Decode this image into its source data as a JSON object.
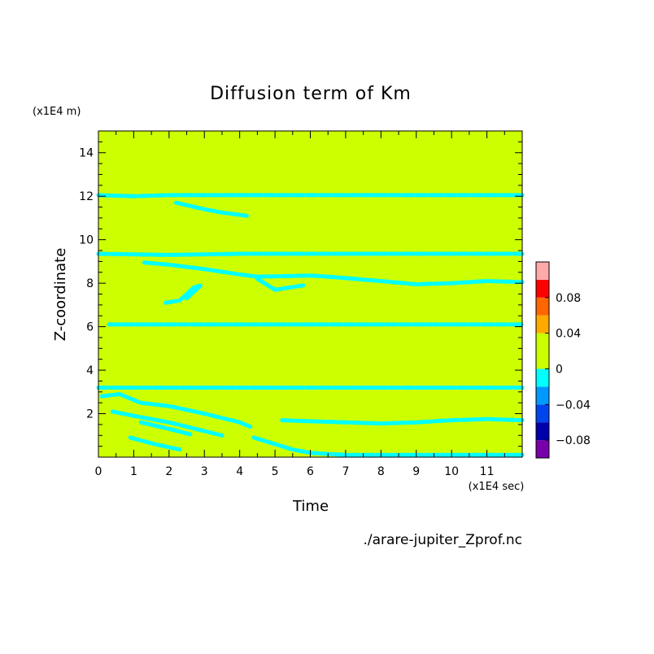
{
  "chart_data": {
    "type": "heatmap",
    "title": "Diffusion term of Km",
    "xlabel": "Time",
    "ylabel": "Z-coordinate",
    "x_unit": "(x1E4 sec)",
    "y_unit": "(x1E4 m)",
    "source": "./arare-jupiter_Zprof.nc",
    "xlim": [
      0,
      12
    ],
    "ylim": [
      0,
      15
    ],
    "x_ticks": [
      0,
      1,
      2,
      3,
      4,
      5,
      6,
      7,
      8,
      9,
      10,
      11
    ],
    "y_ticks": [
      2,
      4,
      6,
      8,
      10,
      12,
      14
    ],
    "background_color": "#ccff00",
    "band_color": "#00ffff",
    "colorbar": {
      "ticks": [
        {
          "value": 0.08,
          "label": "0.08"
        },
        {
          "value": 0.04,
          "label": "0.04"
        },
        {
          "value": 0,
          "label": "0"
        },
        {
          "value": -0.04,
          "label": "−0.04"
        },
        {
          "value": -0.08,
          "label": "−0.08"
        }
      ],
      "levels": [
        {
          "from": -0.1,
          "to": -0.08,
          "color": "#7700aa"
        },
        {
          "from": -0.08,
          "to": -0.06,
          "color": "#0000aa"
        },
        {
          "from": -0.06,
          "to": -0.04,
          "color": "#0044ee"
        },
        {
          "from": -0.04,
          "to": -0.02,
          "color": "#0099ff"
        },
        {
          "from": -0.02,
          "to": 0,
          "color": "#00ffff"
        },
        {
          "from": 0,
          "to": 0.02,
          "color": "#ccff00"
        },
        {
          "from": 0.02,
          "to": 0.04,
          "color": "#ccff00"
        },
        {
          "from": 0.04,
          "to": 0.06,
          "color": "#ffaa00"
        },
        {
          "from": 0.06,
          "to": 0.08,
          "color": "#ff6600"
        },
        {
          "from": 0.08,
          "to": 0.1,
          "color": "#ff0000"
        },
        {
          "from": 0.1,
          "to": 0.12,
          "color": "#ffaaaa"
        }
      ]
    },
    "negative_regions": [
      {
        "name": "band-z12",
        "points": [
          [
            0,
            12.05
          ],
          [
            1,
            12.0
          ],
          [
            2,
            12.05
          ],
          [
            3,
            12.05
          ],
          [
            5,
            12.05
          ],
          [
            7,
            12.05
          ],
          [
            9,
            12.05
          ],
          [
            11,
            12.05
          ],
          [
            12,
            12.05
          ]
        ]
      },
      {
        "name": "trail-z11",
        "points": [
          [
            2.2,
            11.7
          ],
          [
            3,
            11.4
          ],
          [
            3.5,
            11.25
          ],
          [
            4.2,
            11.1
          ]
        ]
      },
      {
        "name": "band-z9",
        "points": [
          [
            0,
            9.35
          ],
          [
            2,
            9.3
          ],
          [
            4,
            9.35
          ],
          [
            6,
            9.35
          ],
          [
            8,
            9.35
          ],
          [
            10,
            9.35
          ],
          [
            12,
            9.35
          ]
        ]
      },
      {
        "name": "trail-z8",
        "points": [
          [
            1.3,
            8.95
          ],
          [
            2,
            8.85
          ],
          [
            3,
            8.65
          ],
          [
            4,
            8.4
          ],
          [
            4.5,
            8.3
          ],
          [
            6,
            8.35
          ],
          [
            6.5,
            8.3
          ],
          [
            8,
            8.1
          ],
          [
            9,
            7.95
          ],
          [
            10,
            8.0
          ],
          [
            11,
            8.1
          ],
          [
            12,
            8.05
          ]
        ]
      },
      {
        "name": "trail-z7",
        "points": [
          [
            1.9,
            7.1
          ],
          [
            2.3,
            7.2
          ],
          [
            2.7,
            7.8
          ],
          [
            2.9,
            7.9
          ],
          [
            2.5,
            7.3
          ]
        ]
      },
      {
        "name": "trail-z7b",
        "points": [
          [
            4.5,
            8.2
          ],
          [
            5.0,
            7.7
          ],
          [
            5.4,
            7.8
          ],
          [
            5.8,
            7.9
          ]
        ]
      },
      {
        "name": "band-z6",
        "points": [
          [
            0.3,
            6.1
          ],
          [
            2,
            6.1
          ],
          [
            4,
            6.1
          ],
          [
            6,
            6.1
          ],
          [
            8,
            6.1
          ],
          [
            10,
            6.1
          ],
          [
            12,
            6.1
          ]
        ]
      },
      {
        "name": "band-z3",
        "points": [
          [
            0,
            3.2
          ],
          [
            2,
            3.2
          ],
          [
            4,
            3.2
          ],
          [
            6,
            3.2
          ],
          [
            8,
            3.2
          ],
          [
            10,
            3.2
          ],
          [
            12,
            3.2
          ]
        ]
      },
      {
        "name": "trail-z2a",
        "points": [
          [
            0.1,
            2.8
          ],
          [
            0.6,
            2.9
          ],
          [
            1.2,
            2.5
          ],
          [
            2,
            2.35
          ],
          [
            3,
            2.0
          ],
          [
            4,
            1.6
          ],
          [
            4.3,
            1.4
          ]
        ]
      },
      {
        "name": "trail-z2b",
        "points": [
          [
            0.4,
            2.1
          ],
          [
            1,
            1.9
          ],
          [
            2,
            1.6
          ],
          [
            3,
            1.2
          ],
          [
            3.5,
            1.0
          ]
        ]
      },
      {
        "name": "trail-z1",
        "points": [
          [
            1.2,
            1.6
          ],
          [
            2,
            1.3
          ],
          [
            2.6,
            1.05
          ]
        ]
      },
      {
        "name": "trail-z1b",
        "points": [
          [
            0.9,
            0.9
          ],
          [
            1.6,
            0.6
          ],
          [
            2.3,
            0.35
          ]
        ]
      },
      {
        "name": "trail-z15",
        "points": [
          [
            5.2,
            1.7
          ],
          [
            6,
            1.65
          ],
          [
            7,
            1.6
          ],
          [
            8,
            1.55
          ],
          [
            9,
            1.6
          ],
          [
            10,
            1.7
          ],
          [
            11,
            1.75
          ],
          [
            12,
            1.7
          ]
        ]
      },
      {
        "name": "trail-bottom",
        "points": [
          [
            4.4,
            0.9
          ],
          [
            5,
            0.6
          ],
          [
            5.5,
            0.35
          ],
          [
            6,
            0.2
          ],
          [
            7,
            0.1
          ],
          [
            9,
            0.1
          ],
          [
            12,
            0.1
          ]
        ]
      }
    ]
  }
}
